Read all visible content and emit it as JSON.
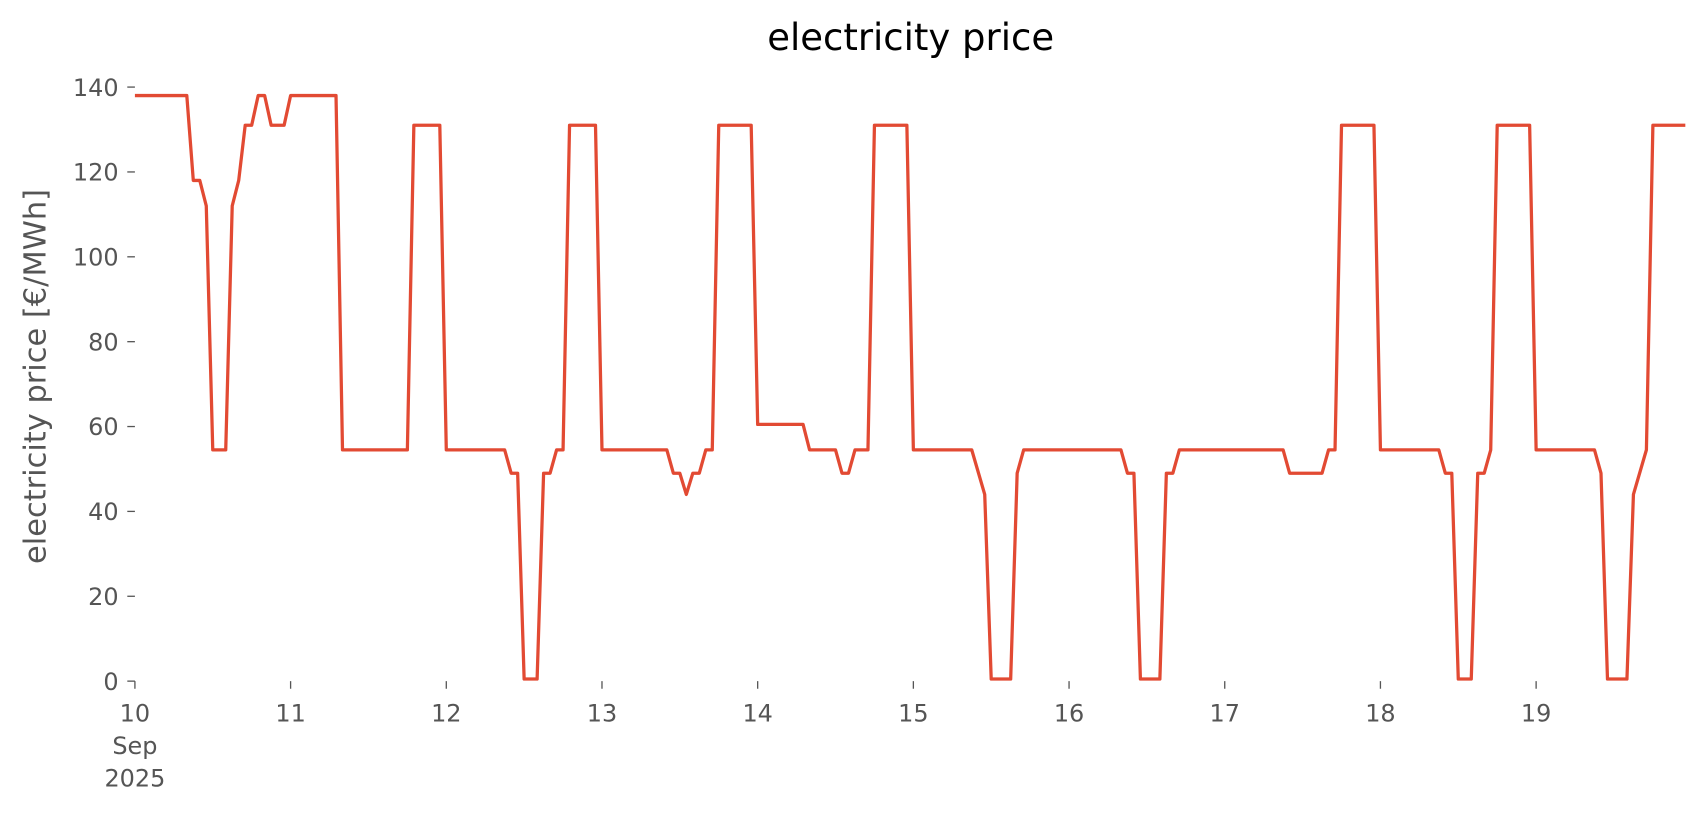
{
  "chart_data": {
    "type": "line",
    "title": "electricity price",
    "y_label": "electricity price [€/MWh]",
    "x": [
      0,
      8,
      9,
      10,
      11,
      12,
      14,
      15,
      16,
      17,
      18,
      19,
      20,
      21,
      23,
      24,
      31,
      32,
      42,
      43,
      47,
      48,
      57,
      58,
      59,
      60,
      62,
      63,
      64,
      65,
      66,
      67,
      71,
      72,
      82,
      83,
      84,
      85,
      86,
      87,
      88,
      89,
      90,
      95,
      96,
      103,
      104,
      108,
      109,
      110,
      111,
      113,
      114,
      119,
      120,
      129,
      131,
      132,
      135,
      136,
      137,
      152,
      153,
      154,
      155,
      158,
      159,
      160,
      161,
      177,
      178,
      183,
      184,
      185,
      186,
      191,
      192,
      201,
      202,
      203,
      204,
      206,
      207,
      208,
      209,
      210,
      215,
      216,
      225,
      226,
      227,
      230,
      231,
      233,
      234,
      239
    ],
    "series": [
      {
        "name": "electricity price",
        "color": "#e24a33",
        "values": [
          138,
          138,
          118,
          118,
          112,
          54.5,
          54.5,
          112,
          118,
          131,
          131,
          138,
          138,
          131,
          131,
          138,
          138,
          54.5,
          54.5,
          131,
          131,
          54.5,
          54.5,
          49,
          49,
          0.5,
          0.5,
          49,
          49,
          54.5,
          54.5,
          131,
          131,
          54.5,
          54.5,
          49,
          49,
          44,
          49,
          49,
          54.5,
          54.5,
          131,
          131,
          60.5,
          60.5,
          54.5,
          54.5,
          49,
          49,
          54.5,
          54.5,
          131,
          131,
          54.5,
          54.5,
          44,
          0.5,
          0.5,
          49,
          54.5,
          54.5,
          49,
          49,
          0.5,
          0.5,
          49,
          49,
          54.5,
          54.5,
          49,
          49,
          54.5,
          54.5,
          131,
          131,
          54.5,
          54.5,
          49,
          49,
          0.5,
          0.5,
          49,
          49,
          54.5,
          131,
          131,
          54.5,
          54.5,
          49,
          0.5,
          0.5,
          44,
          54.5,
          131,
          131
        ]
      }
    ],
    "xlim": [
      0,
      239
    ],
    "xticks": [
      {
        "value": 0,
        "label": "10\nSep\n2025"
      },
      {
        "value": 24,
        "label": "11"
      },
      {
        "value": 48,
        "label": "12"
      },
      {
        "value": 72,
        "label": "13"
      },
      {
        "value": 96,
        "label": "14"
      },
      {
        "value": 120,
        "label": "15"
      },
      {
        "value": 144,
        "label": "16"
      },
      {
        "value": 168,
        "label": "17"
      },
      {
        "value": 192,
        "label": "18"
      },
      {
        "value": 216,
        "label": "19"
      }
    ],
    "ylim": [
      0,
      140
    ],
    "yticks": [
      0,
      20,
      40,
      60,
      80,
      100,
      120,
      140
    ],
    "grid": false
  }
}
